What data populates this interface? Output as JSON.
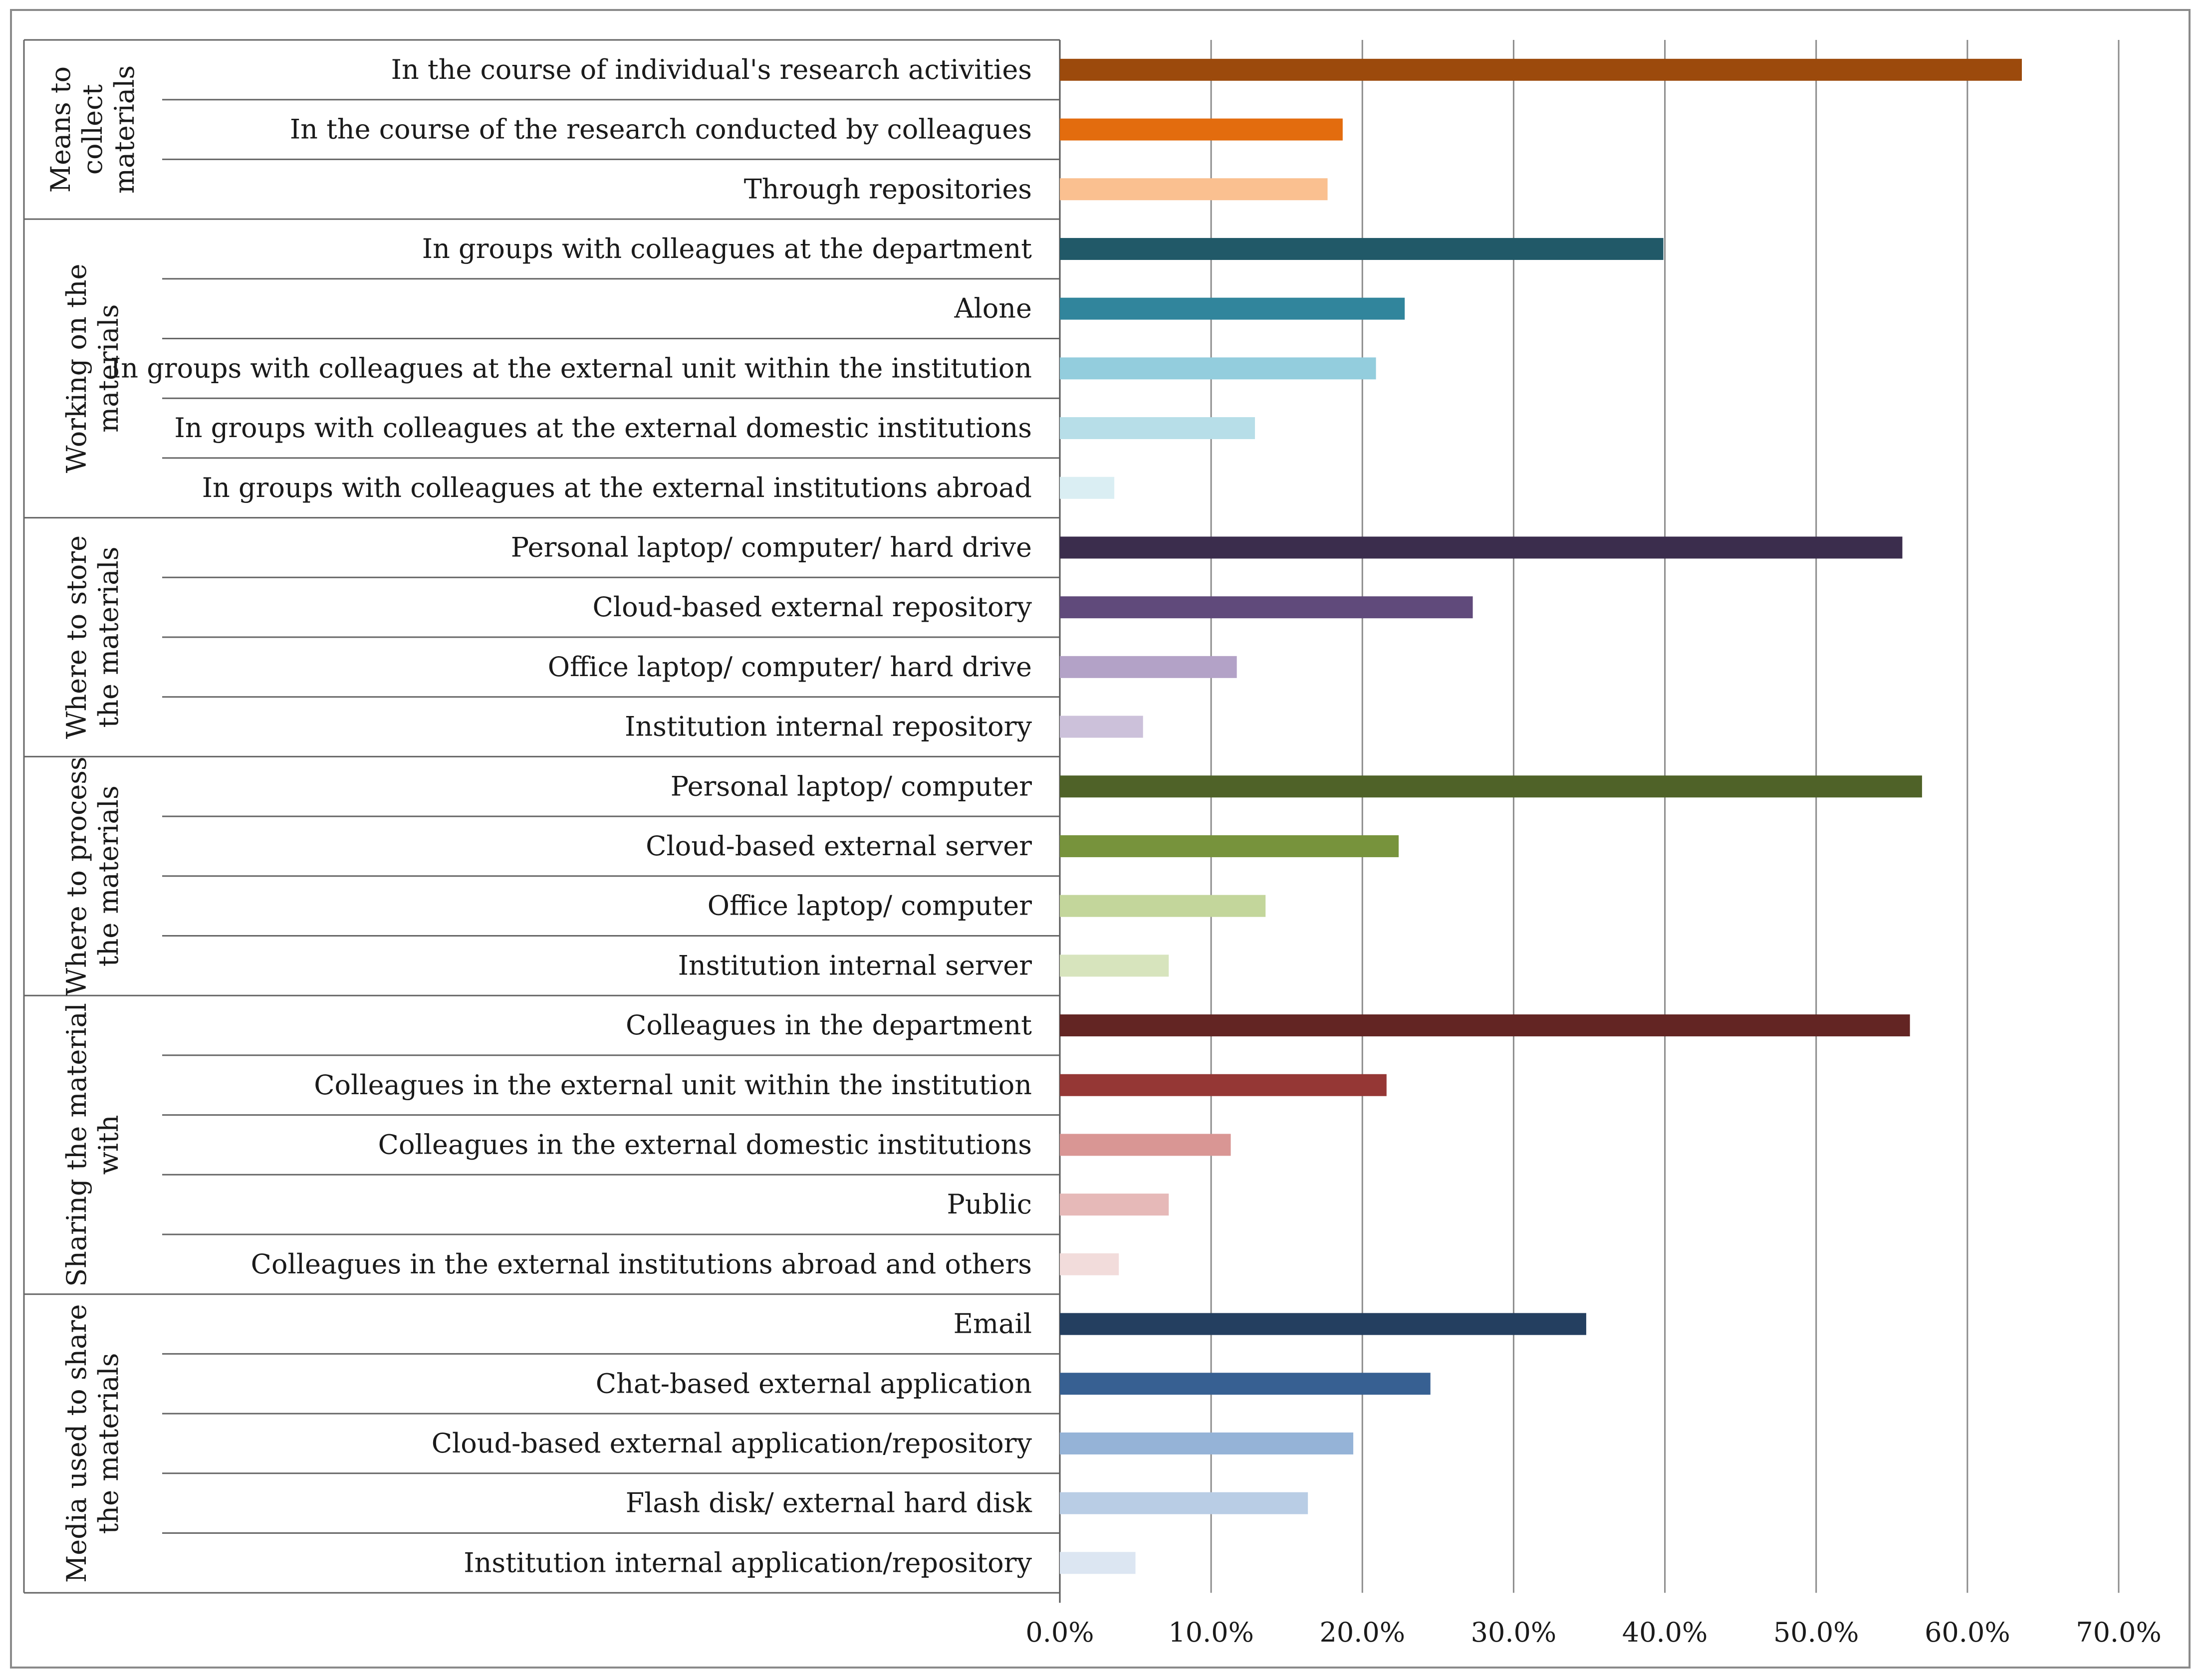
{
  "chart_data": {
    "type": "bar",
    "orientation": "horizontal",
    "xlim": [
      0,
      70
    ],
    "x_ticks": [
      "0.0%",
      "10.0%",
      "20.0%",
      "30.0%",
      "40.0%",
      "50.0%",
      "60.0%",
      "70.0%"
    ],
    "x_tick_values": [
      0,
      10,
      20,
      30,
      40,
      50,
      60,
      70
    ],
    "grid": "vertical",
    "legend": "none",
    "groups": [
      {
        "label_lines": [
          "Means to",
          "collect",
          "materials"
        ],
        "items": [
          {
            "label": "In the course of individual's research activities",
            "value": 63.6,
            "color": "#9C4A0C"
          },
          {
            "label": "In the course of the research conducted by colleagues",
            "value": 18.7,
            "color": "#E36C0E"
          },
          {
            "label": "Through repositories",
            "value": 17.7,
            "color": "#FAC090"
          }
        ]
      },
      {
        "label_lines": [
          "Working on the",
          "materials"
        ],
        "items": [
          {
            "label": "In groups with colleagues at the department",
            "value": 39.9,
            "color": "#215968"
          },
          {
            "label": "Alone",
            "value": 22.8,
            "color": "#31859C"
          },
          {
            "label": "In groups with colleagues at the external unit within the institution",
            "value": 20.9,
            "color": "#93CDDD"
          },
          {
            "label": "In groups with colleagues at the external domestic institutions",
            "value": 12.9,
            "color": "#B7DEE8"
          },
          {
            "label": "In groups with colleagues at the external institutions abroad",
            "value": 3.6,
            "color": "#DAEEF3"
          }
        ]
      },
      {
        "label_lines": [
          "Where to store",
          "the materials"
        ],
        "items": [
          {
            "label": "Personal laptop/ computer/ hard drive",
            "value": 55.7,
            "color": "#3B2D4D"
          },
          {
            "label": "Cloud-based external repository",
            "value": 27.3,
            "color": "#604A7B"
          },
          {
            "label": "Office laptop/ computer/ hard drive",
            "value": 11.7,
            "color": "#B3A2C7"
          },
          {
            "label": "Institution internal repository",
            "value": 5.5,
            "color": "#CCC1DA"
          }
        ]
      },
      {
        "label_lines": [
          "Where to process",
          "the materials"
        ],
        "items": [
          {
            "label": "Personal laptop/ computer",
            "value": 57.0,
            "color": "#4F6228"
          },
          {
            "label": "Cloud-based external server",
            "value": 22.4,
            "color": "#77933C"
          },
          {
            "label": "Office laptop/ computer",
            "value": 13.6,
            "color": "#C3D69B"
          },
          {
            "label": "Institution internal server",
            "value": 7.2,
            "color": "#D7E4BD"
          }
        ]
      },
      {
        "label_lines": [
          "Sharing the material",
          "with"
        ],
        "items": [
          {
            "label": "Colleagues in the department",
            "value": 56.2,
            "color": "#632523"
          },
          {
            "label": "Colleagues in the external unit within the institution",
            "value": 21.6,
            "color": "#953735"
          },
          {
            "label": "Colleagues in the external domestic institutions",
            "value": 11.3,
            "color": "#D99694"
          },
          {
            "label": "Public",
            "value": 7.2,
            "color": "#E6B9B8"
          },
          {
            "label": "Colleagues in the external institutions abroad and others",
            "value": 3.9,
            "color": "#F2DCDB"
          }
        ]
      },
      {
        "label_lines": [
          "Media used to share",
          "the materials"
        ],
        "items": [
          {
            "label": "Email",
            "value": 34.8,
            "color": "#243F60"
          },
          {
            "label": "Chat-based external application",
            "value": 24.5,
            "color": "#376092"
          },
          {
            "label": "Cloud-based external application/repository",
            "value": 19.4,
            "color": "#95B3D7"
          },
          {
            "label": "Flash disk/ external hard disk",
            "value": 16.4,
            "color": "#B9CDE5"
          },
          {
            "label": "Institution internal application/repository",
            "value": 5.0,
            "color": "#DCE6F2"
          }
        ]
      }
    ]
  }
}
